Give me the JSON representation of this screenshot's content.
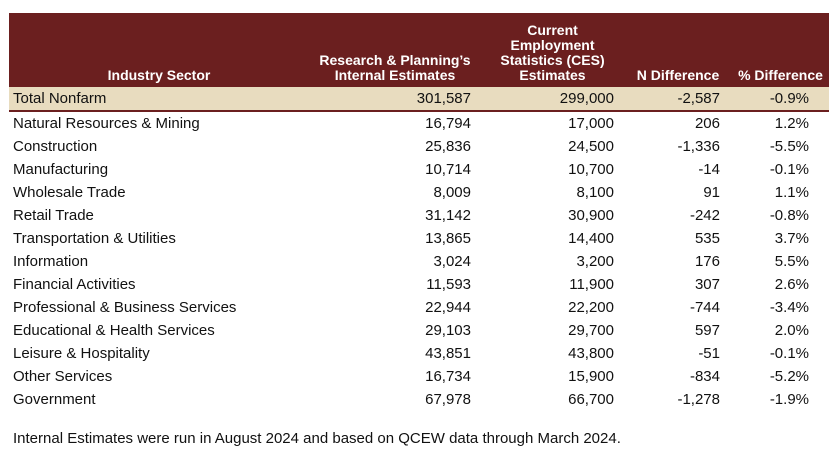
{
  "headers": [
    "Industry Sector",
    "Research & Planning’s Internal Estimates",
    "Current Employment Statistics (CES) Estimates",
    "N Difference",
    "% Difference"
  ],
  "rows": [
    [
      "Total Nonfarm",
      "301,587",
      "299,000",
      "-2,587",
      "-0.9%"
    ],
    [
      "Natural Resources & Mining",
      "16,794",
      "17,000",
      "206",
      "1.2%"
    ],
    [
      "Construction",
      "25,836",
      "24,500",
      "-1,336",
      "-5.5%"
    ],
    [
      "Manufacturing",
      "10,714",
      "10,700",
      "-14",
      "-0.1%"
    ],
    [
      "Wholesale Trade",
      "8,009",
      "8,100",
      "91",
      "1.1%"
    ],
    [
      "Retail Trade",
      "31,142",
      "30,900",
      "-242",
      "-0.8%"
    ],
    [
      "Transportation & Utilities",
      "13,865",
      "14,400",
      "535",
      "3.7%"
    ],
    [
      "Information",
      "3,024",
      "3,200",
      "176",
      "5.5%"
    ],
    [
      "Financial Activities",
      "11,593",
      "11,900",
      "307",
      "2.6%"
    ],
    [
      "Professional & Business Services",
      "22,944",
      "22,200",
      "-744",
      "-3.4%"
    ],
    [
      "Educational & Health Services",
      "29,103",
      "29,700",
      "597",
      "2.0%"
    ],
    [
      "Leisure & Hospitality",
      "43,851",
      "43,800",
      "-51",
      "-0.1%"
    ],
    [
      "Other Services",
      "16,734",
      "15,900",
      "-834",
      "-5.2%"
    ],
    [
      "Government",
      "67,978",
      "66,700",
      "-1,278",
      "-1.9%"
    ]
  ],
  "note": "Internal Estimates were run in August 2024 and based on QCEW data through March 2024.",
  "colors": {
    "header_bg": "#6b1f1f",
    "total_bg": "#e8dcbf"
  }
}
